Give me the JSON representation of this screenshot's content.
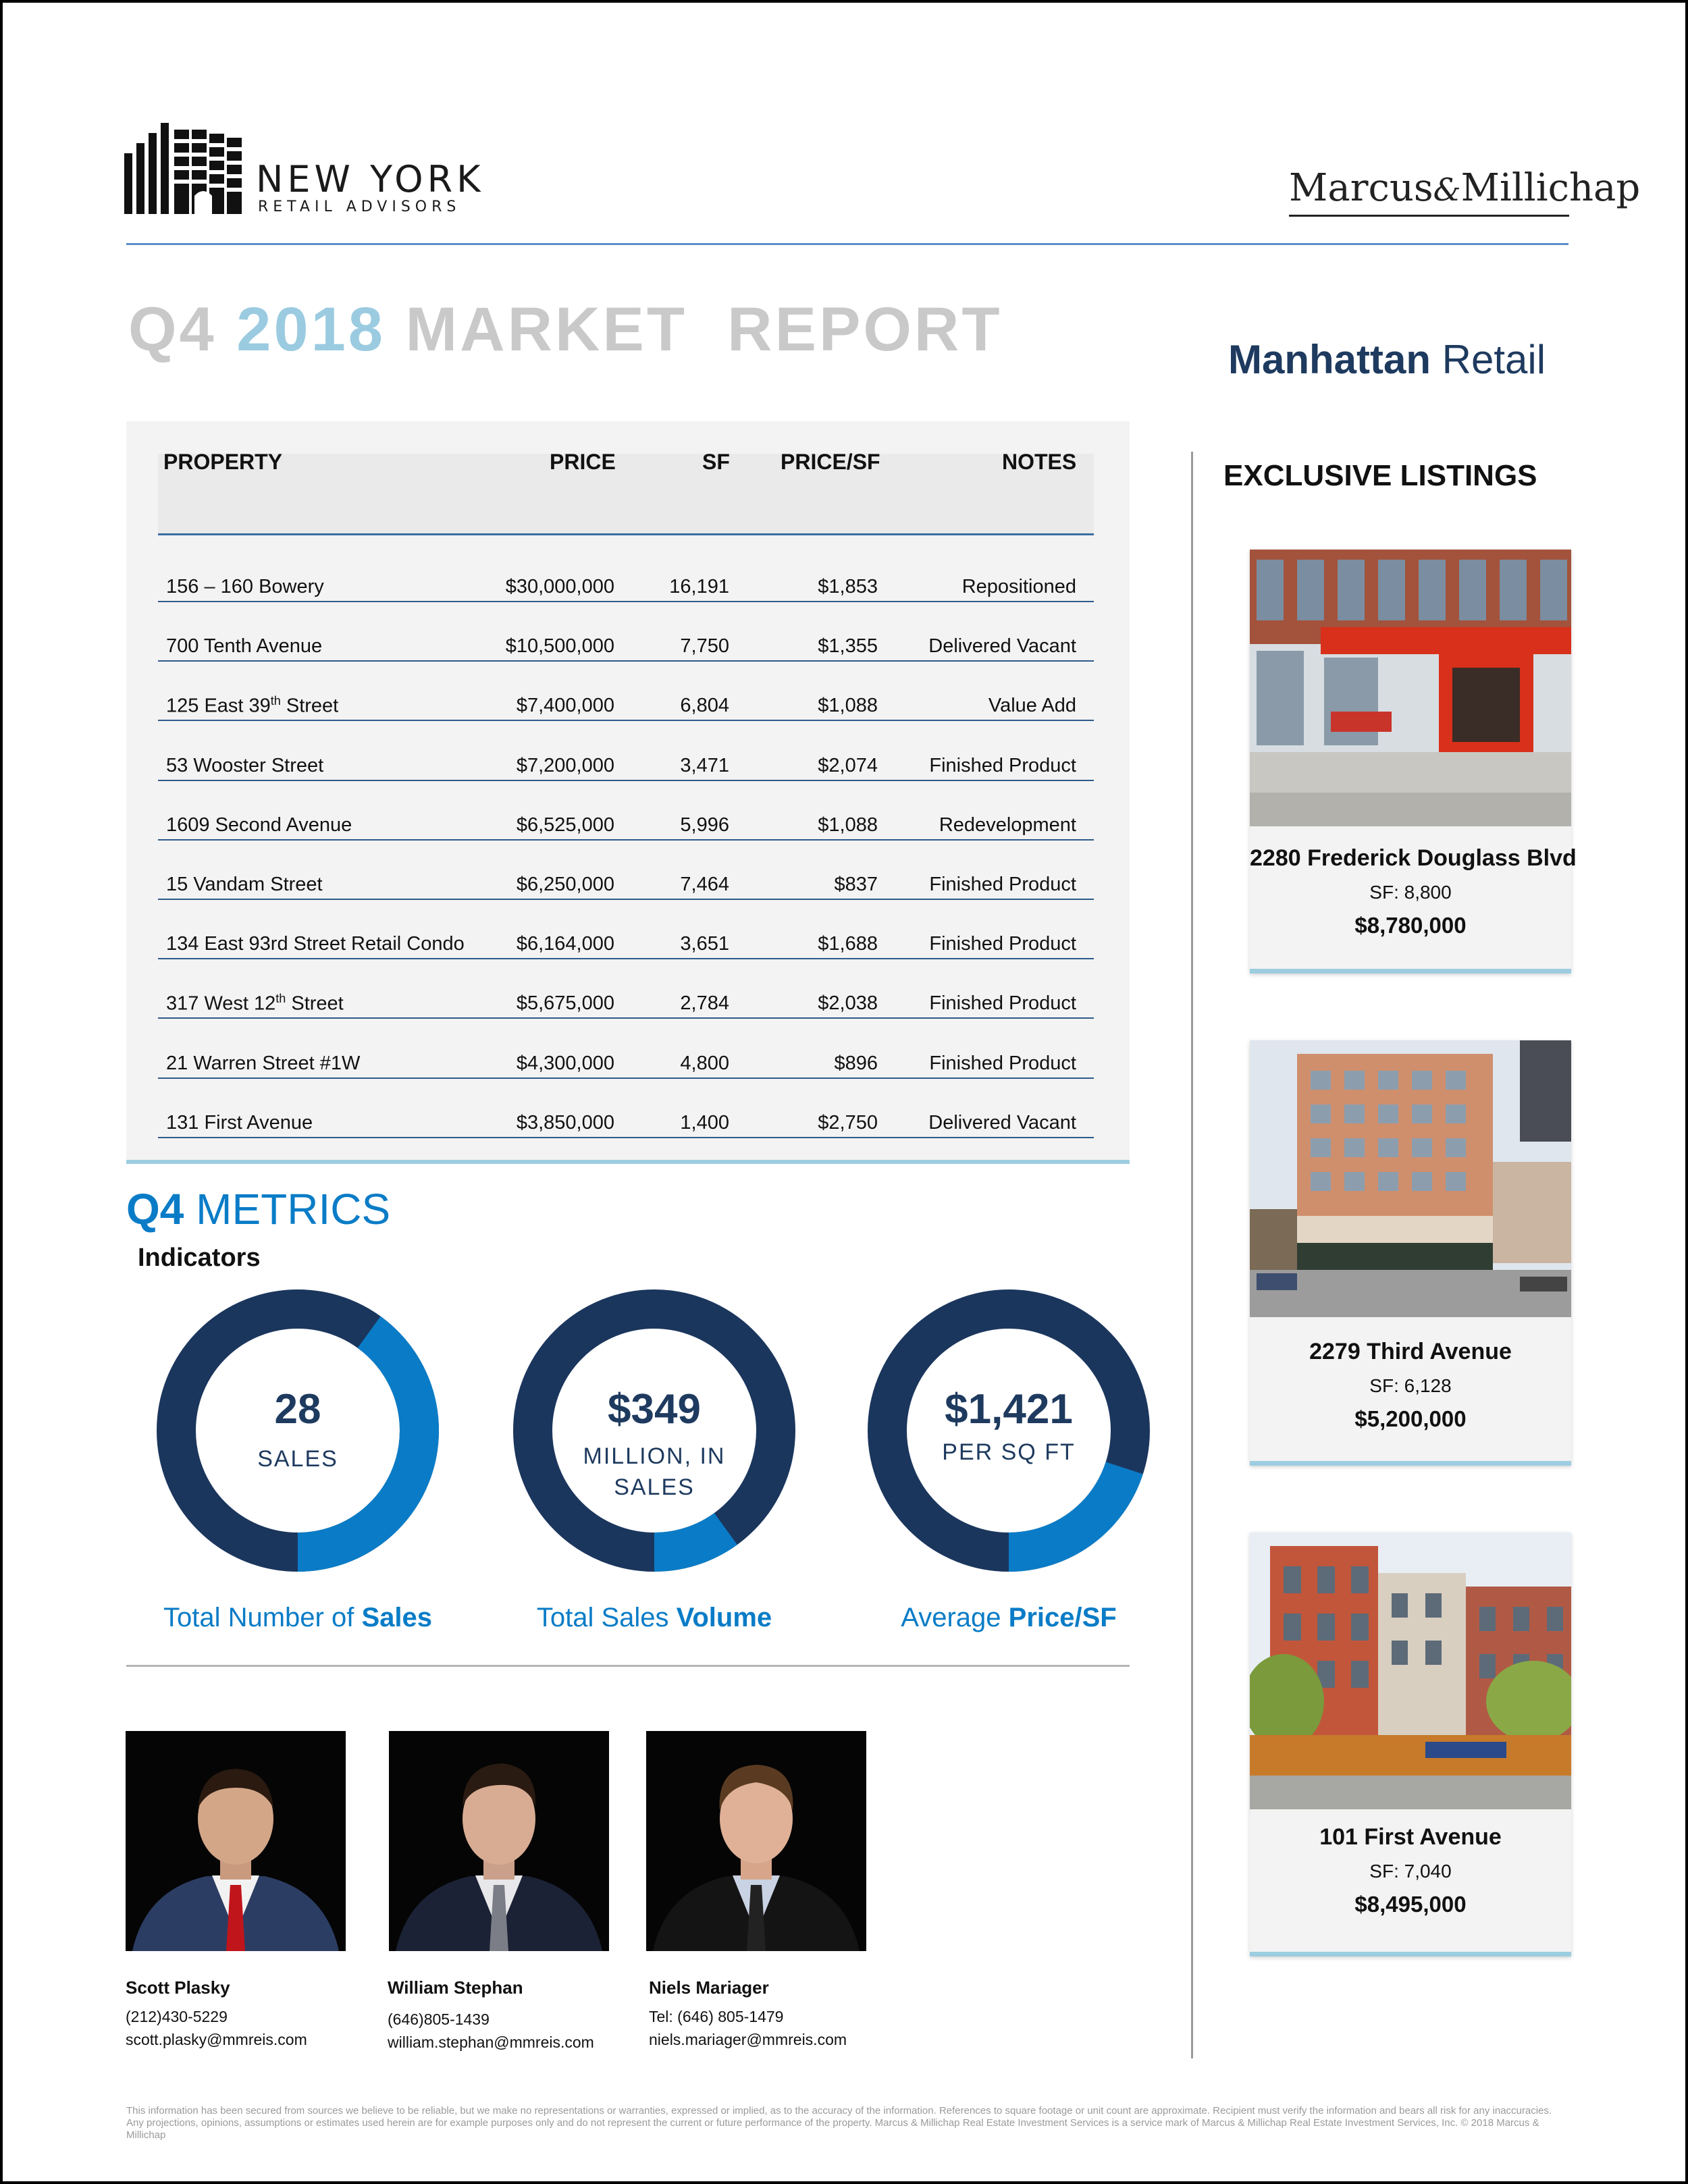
{
  "header": {
    "logo_main": "NEW YORK",
    "logo_sub": "RETAIL ADVISORS",
    "brand": "Marcus & Millichap",
    "brand_part1": "Marcus",
    "brand_amp": "&",
    "brand_part2": "Millichap"
  },
  "title": {
    "q": "Q4",
    "year": "2018",
    "rest": "MARKET  REPORT",
    "sub_bold": "Manhattan",
    "sub_rest": " Retail"
  },
  "table": {
    "headers": [
      "PROPERTY",
      "PRICE",
      "SF",
      "PRICE/SF",
      "NOTES"
    ],
    "rows": [
      {
        "property": "156 – 160 Bowery",
        "price": "$30,000,000",
        "sf": "16,191",
        "psf": "$1,853",
        "notes": "Repositioned"
      },
      {
        "property": "700 Tenth Avenue",
        "price": "$10,500,000",
        "sf": "7,750",
        "psf": "$1,355",
        "notes": "Delivered Vacant"
      },
      {
        "property": "125 East 39",
        "property_sup": "th",
        "property_tail": " Street",
        "price": "$7,400,000",
        "sf": "6,804",
        "psf": "$1,088",
        "notes": "Value Add"
      },
      {
        "property": "53 Wooster Street",
        "price": "$7,200,000",
        "sf": "3,471",
        "psf": "$2,074",
        "notes": "Finished Product"
      },
      {
        "property": "1609 Second Avenue",
        "price": "$6,525,000",
        "sf": "5,996",
        "psf": "$1,088",
        "notes": "Redevelopment"
      },
      {
        "property": "15 Vandam Street",
        "price": "$6,250,000",
        "sf": "7,464",
        "psf": "$837",
        "notes": "Finished Product"
      },
      {
        "property": "134 East 93rd Street Retail Condo",
        "price": "$6,164,000",
        "sf": "3,651",
        "psf": "$1,688",
        "notes": "Finished Product"
      },
      {
        "property": "317 West 12",
        "property_sup": "th",
        "property_tail": " Street",
        "price": "$5,675,000",
        "sf": "2,784",
        "psf": "$2,038",
        "notes": "Finished Product"
      },
      {
        "property": "21 Warren Street #1W",
        "price": "$4,300,000",
        "sf": "4,800",
        "psf": "$896",
        "notes": "Finished Product"
      },
      {
        "property": "131 First Avenue",
        "price": "$3,850,000",
        "sf": "1,400",
        "psf": "$2,750",
        "notes": "Delivered Vacant"
      }
    ]
  },
  "metrics": {
    "title_bold": "Q4",
    "title_rest": " METRICS",
    "indicators_label": "Indicators",
    "donuts": [
      {
        "value": "28",
        "line1": "SALES",
        "line2": "",
        "cap_plain": "Total Number of ",
        "cap_bold": "Sales",
        "fill_fraction": 0.4
      },
      {
        "value": "$349",
        "line1": "MILLION, IN",
        "line2": "SALES",
        "cap_plain": "Total Sales ",
        "cap_bold": "Volume",
        "fill_fraction": 0.1
      },
      {
        "value": "$1,421",
        "line1": "PER SQ FT",
        "line2": "",
        "cap_plain": "Average ",
        "cap_bold": "Price/SF",
        "fill_fraction": 0.2
      }
    ],
    "colors": {
      "dark": "#1b365d",
      "light": "#0a7cc7"
    }
  },
  "agents": [
    {
      "name": "Scott Plasky",
      "line1": "(212)430-5229",
      "line2": "scott.plasky@mmreis.com"
    },
    {
      "name": "William Stephan",
      "line1": "(646)805-1439",
      "line2": "william.stephan@mmreis.com"
    },
    {
      "name": "Niels Mariager",
      "line1": "Tel: (646) 805-1479",
      "line2": "niels.mariager@mmreis.com"
    }
  ],
  "listings": {
    "title": "EXCLUSIVE LISTINGS",
    "items": [
      {
        "name": "2280 Frederick Douglass Blvd",
        "sf": "SF: 8,800",
        "price": "$8,780,000"
      },
      {
        "name": "2279 Third Avenue",
        "sf": "SF: 6,128",
        "price": "$5,200,000"
      },
      {
        "name": "101 First Avenue",
        "sf": "SF: 7,040",
        "price": "$8,495,000"
      }
    ]
  },
  "disclaimer": "This information has been secured from sources we believe to be reliable, but we make no representations or warranties, expressed or implied, as to the accuracy of the information. References to square footage or unit count are approximate. Recipient must verify the information and bears all risk for any inaccuracies. Any projections, opinions, assumptions or estimates used herein are for example purposes only and do not represent the current or future performance of the property. Marcus & Millichap Real Estate Investment Services is a service mark of Marcus & Millichap Real Estate Investment Services, Inc. © 2018 Marcus & Millichap"
}
